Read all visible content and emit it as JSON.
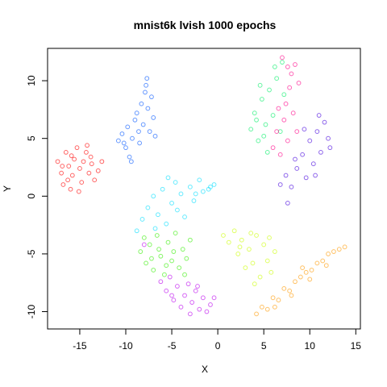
{
  "chart_data": {
    "type": "scatter",
    "title": "mnist6k lvish 1000 epochs",
    "xlabel": "X",
    "ylabel": "Y",
    "xlim": [
      -18.5,
      15.5
    ],
    "ylim": [
      -11.5,
      12.8
    ],
    "xticks": [
      -15,
      -10,
      -5,
      0,
      5,
      10,
      15
    ],
    "yticks": [
      -10,
      -5,
      0,
      5,
      10
    ],
    "grid": false,
    "legend": "none",
    "marker": "open circle",
    "series": [
      {
        "color": "#ff0000",
        "points": [
          [
            -17.4,
            3.0
          ],
          [
            -17.0,
            2.0
          ],
          [
            -16.8,
            1.0
          ],
          [
            -16.5,
            3.8
          ],
          [
            -16.2,
            2.6
          ],
          [
            -16.0,
            0.6
          ],
          [
            -15.8,
            1.8
          ],
          [
            -15.6,
            3.2
          ],
          [
            -15.3,
            4.2
          ],
          [
            -15.0,
            2.4
          ],
          [
            -14.8,
            1.2
          ],
          [
            -14.6,
            3.0
          ],
          [
            -14.3,
            3.8
          ],
          [
            -14.0,
            2.0
          ],
          [
            -13.7,
            2.8
          ],
          [
            -13.4,
            1.4
          ],
          [
            -13.0,
            2.2
          ],
          [
            -12.6,
            3.0
          ],
          [
            -16.9,
            2.6
          ],
          [
            -15.9,
            3.5
          ],
          [
            -15.1,
            0.4
          ],
          [
            -14.2,
            4.4
          ],
          [
            -13.8,
            3.4
          ],
          [
            -16.3,
            1.4
          ]
        ]
      },
      {
        "color": "#0055ff",
        "points": [
          [
            -10.8,
            4.8
          ],
          [
            -10.4,
            5.4
          ],
          [
            -10.0,
            4.2
          ],
          [
            -9.8,
            6.0
          ],
          [
            -9.6,
            3.4
          ],
          [
            -9.3,
            5.0
          ],
          [
            -9.0,
            6.6
          ],
          [
            -8.8,
            7.2
          ],
          [
            -8.5,
            4.6
          ],
          [
            -8.3,
            8.0
          ],
          [
            -8.1,
            6.2
          ],
          [
            -7.9,
            9.0
          ],
          [
            -7.7,
            10.2
          ],
          [
            -7.6,
            7.6
          ],
          [
            -7.4,
            5.6
          ],
          [
            -7.2,
            8.6
          ],
          [
            -7.0,
            6.8
          ],
          [
            -6.8,
            5.2
          ],
          [
            -7.8,
            9.6
          ],
          [
            -9.4,
            3.0
          ],
          [
            -8.6,
            5.6
          ],
          [
            -10.2,
            4.6
          ]
        ]
      },
      {
        "color": "#00ddff",
        "points": [
          [
            -8.2,
            -2.0
          ],
          [
            -7.6,
            -1.0
          ],
          [
            -7.0,
            0.0
          ],
          [
            -6.5,
            -1.6
          ],
          [
            -6.0,
            0.6
          ],
          [
            -5.6,
            -2.4
          ],
          [
            -5.0,
            -0.6
          ],
          [
            -4.6,
            1.2
          ],
          [
            -4.0,
            0.2
          ],
          [
            -3.6,
            -1.8
          ],
          [
            -3.0,
            0.8
          ],
          [
            -2.6,
            -0.4
          ],
          [
            -2.0,
            1.4
          ],
          [
            -1.6,
            0.4
          ],
          [
            -1.0,
            0.6
          ],
          [
            -0.4,
            1.0
          ],
          [
            -5.4,
            1.6
          ],
          [
            -6.8,
            -2.8
          ],
          [
            -4.4,
            -1.2
          ],
          [
            -2.4,
            0.2
          ],
          [
            -8.8,
            -3.0
          ],
          [
            -0.8,
            0.8
          ]
        ]
      },
      {
        "color": "#33ee00",
        "points": [
          [
            -8.4,
            -4.8
          ],
          [
            -8.0,
            -3.6
          ],
          [
            -7.8,
            -5.8
          ],
          [
            -7.4,
            -4.2
          ],
          [
            -7.0,
            -6.4
          ],
          [
            -6.6,
            -3.4
          ],
          [
            -6.2,
            -5.2
          ],
          [
            -5.8,
            -6.8
          ],
          [
            -5.4,
            -4.0
          ],
          [
            -5.0,
            -5.6
          ],
          [
            -4.6,
            -3.2
          ],
          [
            -4.2,
            -6.2
          ],
          [
            -3.8,
            -4.6
          ],
          [
            -3.4,
            -5.4
          ],
          [
            -3.0,
            -3.8
          ],
          [
            -6.4,
            -4.6
          ],
          [
            -4.8,
            -4.8
          ],
          [
            -7.2,
            -5.4
          ],
          [
            -5.6,
            -6.0
          ],
          [
            -3.6,
            -6.8
          ]
        ]
      },
      {
        "color": "#bb00ee",
        "points": [
          [
            -6.2,
            -7.4
          ],
          [
            -5.6,
            -8.2
          ],
          [
            -5.2,
            -7.0
          ],
          [
            -4.8,
            -9.0
          ],
          [
            -4.4,
            -7.8
          ],
          [
            -4.0,
            -9.6
          ],
          [
            -3.6,
            -8.6
          ],
          [
            -3.2,
            -7.6
          ],
          [
            -2.8,
            -9.2
          ],
          [
            -2.4,
            -8.2
          ],
          [
            -2.0,
            -9.8
          ],
          [
            -1.6,
            -8.8
          ],
          [
            -1.2,
            -10.0
          ],
          [
            -0.8,
            -9.4
          ],
          [
            -0.4,
            -8.8
          ],
          [
            -3.0,
            -10.2
          ],
          [
            -5.0,
            -8.6
          ],
          [
            -8.0,
            -4.2
          ],
          [
            -2.2,
            -7.8
          ]
        ]
      },
      {
        "color": "#ccff00",
        "points": [
          [
            0.6,
            -3.4
          ],
          [
            1.2,
            -4.0
          ],
          [
            1.8,
            -3.0
          ],
          [
            2.2,
            -5.0
          ],
          [
            2.6,
            -3.8
          ],
          [
            3.0,
            -6.2
          ],
          [
            3.4,
            -4.6
          ],
          [
            3.8,
            -5.8
          ],
          [
            4.2,
            -3.4
          ],
          [
            4.6,
            -7.0
          ],
          [
            5.0,
            -4.2
          ],
          [
            5.4,
            -5.6
          ],
          [
            5.8,
            -6.6
          ],
          [
            6.2,
            -4.8
          ],
          [
            4.0,
            -7.6
          ],
          [
            2.4,
            -4.4
          ],
          [
            3.6,
            -3.2
          ],
          [
            5.6,
            -3.6
          ]
        ]
      },
      {
        "color": "#ff9900",
        "points": [
          [
            4.2,
            -10.2
          ],
          [
            4.8,
            -9.6
          ],
          [
            5.4,
            -9.8
          ],
          [
            6.0,
            -8.8
          ],
          [
            6.6,
            -9.0
          ],
          [
            7.2,
            -8.0
          ],
          [
            7.8,
            -8.2
          ],
          [
            8.4,
            -7.4
          ],
          [
            9.0,
            -7.0
          ],
          [
            9.6,
            -6.6
          ],
          [
            10.2,
            -6.4
          ],
          [
            10.8,
            -5.8
          ],
          [
            11.4,
            -5.6
          ],
          [
            12.0,
            -5.0
          ],
          [
            12.6,
            -4.8
          ],
          [
            13.2,
            -4.6
          ],
          [
            8.0,
            -8.6
          ],
          [
            10.0,
            -7.2
          ],
          [
            11.8,
            -6.0
          ],
          [
            6.2,
            -9.6
          ],
          [
            13.8,
            -4.4
          ],
          [
            9.2,
            -6.2
          ]
        ]
      },
      {
        "color": "#00ee66",
        "points": [
          [
            3.6,
            5.8
          ],
          [
            4.0,
            7.2
          ],
          [
            4.4,
            4.8
          ],
          [
            4.8,
            8.4
          ],
          [
            5.2,
            6.2
          ],
          [
            5.6,
            9.2
          ],
          [
            6.0,
            7.0
          ],
          [
            6.4,
            10.2
          ],
          [
            6.8,
            5.6
          ],
          [
            7.2,
            8.8
          ],
          [
            5.0,
            5.2
          ],
          [
            4.2,
            6.6
          ],
          [
            6.2,
            11.2
          ],
          [
            7.0,
            11.6
          ],
          [
            5.4,
            3.8
          ],
          [
            4.6,
            9.6
          ]
        ]
      },
      {
        "color": "#ff0088",
        "points": [
          [
            6.0,
            4.2
          ],
          [
            6.4,
            5.6
          ],
          [
            6.8,
            3.6
          ],
          [
            7.2,
            6.6
          ],
          [
            7.4,
            8.0
          ],
          [
            7.6,
            4.8
          ],
          [
            7.8,
            9.4
          ],
          [
            8.0,
            10.6
          ],
          [
            8.2,
            7.2
          ],
          [
            8.4,
            11.4
          ],
          [
            8.6,
            5.6
          ],
          [
            8.8,
            9.8
          ],
          [
            7.0,
            12.0
          ],
          [
            7.6,
            11.2
          ],
          [
            6.6,
            7.6
          ]
        ]
      },
      {
        "color": "#4400dd",
        "points": [
          [
            6.8,
            1.0
          ],
          [
            7.4,
            1.8
          ],
          [
            8.0,
            0.8
          ],
          [
            8.6,
            2.4
          ],
          [
            9.2,
            3.6
          ],
          [
            9.6,
            1.6
          ],
          [
            10.0,
            4.8
          ],
          [
            10.4,
            2.8
          ],
          [
            10.8,
            5.6
          ],
          [
            11.2,
            3.8
          ],
          [
            11.6,
            6.4
          ],
          [
            12.0,
            5.0
          ],
          [
            12.2,
            4.2
          ],
          [
            11.0,
            7.0
          ],
          [
            9.4,
            5.8
          ],
          [
            8.4,
            3.2
          ],
          [
            7.6,
            -0.6
          ],
          [
            10.6,
            1.8
          ]
        ]
      }
    ]
  }
}
